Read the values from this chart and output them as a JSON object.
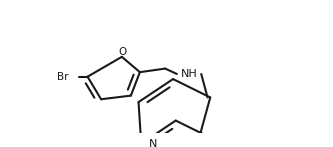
{
  "bg_color": "#ffffff",
  "line_color": "#1a1a1a",
  "lw": 1.5,
  "dbo": 0.013,
  "figsize": [
    3.33,
    1.47
  ],
  "dpi": 100,
  "fs": 8.0,
  "xlim": [
    0,
    333
  ],
  "ylim": [
    0,
    147
  ]
}
